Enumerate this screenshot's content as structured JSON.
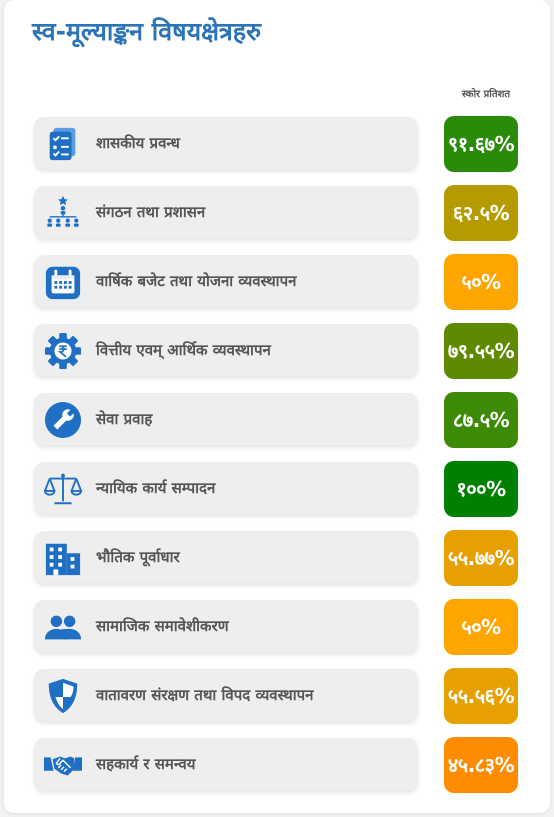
{
  "page": {
    "title": "स्व-मूल्याङ्कन विषयक्षेत्रहरु",
    "score_column_header": "स्कोर प्रतिशत"
  },
  "areas": [
    {
      "label": "शासकीय प्रवन्ध",
      "score": "९१.६७%",
      "score_percent": 91.67,
      "color": "#2a8a09",
      "icon": "checklist-icon"
    },
    {
      "label": "संगठन तथा प्रशासन",
      "score": "६२.५%",
      "score_percent": 62.5,
      "color": "#b59a00",
      "icon": "org-chart-icon"
    },
    {
      "label": "वार्षिक बजेट तथा योजना व्यवस्थापन",
      "score": "५०%",
      "score_percent": 50,
      "color": "#ffa500",
      "icon": "calendar-icon"
    },
    {
      "label": "वित्तीय एवम् आर्थिक व्यवस्थापन",
      "score": "७९.५५%",
      "score_percent": 79.55,
      "color": "#5f8a00",
      "icon": "finance-gear-icon"
    },
    {
      "label": "सेवा प्रवाह",
      "score": "८७.५%",
      "score_percent": 87.5,
      "color": "#3d8a05",
      "icon": "wrench-icon"
    },
    {
      "label": "न्यायिक कार्य सम्पादन",
      "score": "१००%",
      "score_percent": 100,
      "color": "#008000",
      "icon": "scales-icon"
    },
    {
      "label": "भौतिक पूर्वाधार",
      "score": "५५.७७%",
      "score_percent": 55.77,
      "color": "#e6a000",
      "icon": "building-icon"
    },
    {
      "label": "सामाजिक समावेशीकरण",
      "score": "५०%",
      "score_percent": 50,
      "color": "#ffa500",
      "icon": "people-icon"
    },
    {
      "label": "वातावरण संरक्षण तथा विपद व्यवस्थापन",
      "score": "५५.५६%",
      "score_percent": 55.56,
      "color": "#e6a000",
      "icon": "shield-icon"
    },
    {
      "label": "सहकार्य र समन्वय",
      "score": "४५.८३%",
      "score_percent": 45.83,
      "color": "#ff8c00",
      "icon": "handshake-icon"
    }
  ]
}
